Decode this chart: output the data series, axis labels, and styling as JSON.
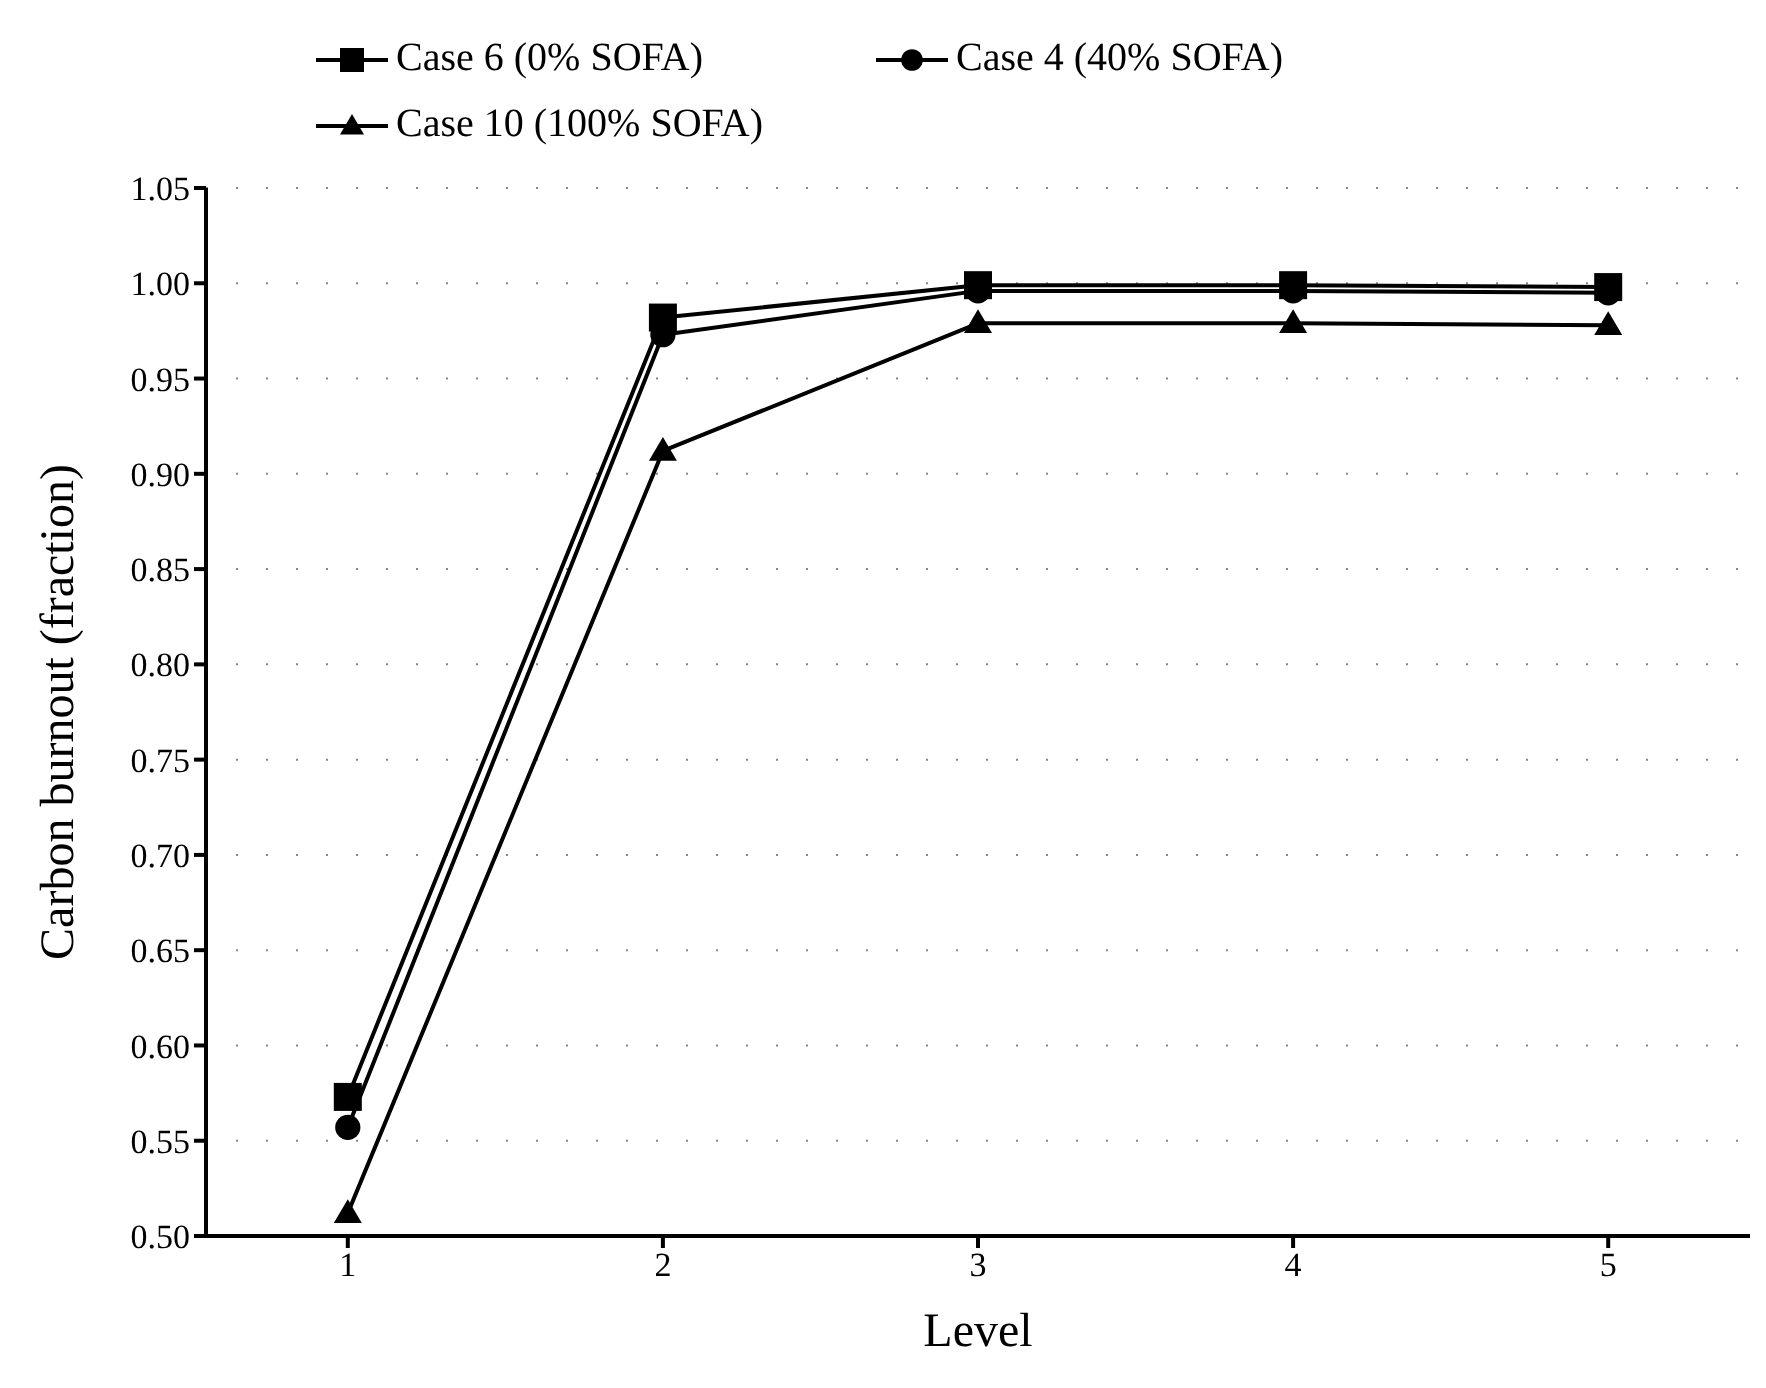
{
  "chart_data": {
    "type": "line",
    "xlabel": "Level",
    "ylabel": "Carbon burnout (fraction)",
    "x": [
      1,
      2,
      3,
      4,
      5
    ],
    "xlim": [
      0.55,
      5.45
    ],
    "xticks": [
      1,
      2,
      3,
      4,
      5
    ],
    "ylim": [
      0.5,
      1.05
    ],
    "yticks": [
      {
        "value": 0.5,
        "label": "0.50"
      },
      {
        "value": 0.55,
        "label": "0.55"
      },
      {
        "value": 0.6,
        "label": "0.60"
      },
      {
        "value": 0.65,
        "label": "0.65"
      },
      {
        "value": 0.7,
        "label": "0.70"
      },
      {
        "value": 0.75,
        "label": "0.75"
      },
      {
        "value": 0.8,
        "label": "0.80"
      },
      {
        "value": 0.85,
        "label": "0.85"
      },
      {
        "value": 0.9,
        "label": "0.90"
      },
      {
        "value": 0.95,
        "label": "0.95"
      },
      {
        "value": 1.0,
        "label": "1.00"
      },
      {
        "value": 1.05,
        "label": "1.05"
      }
    ],
    "grid": "y",
    "legend": "top",
    "series": [
      {
        "name": "Case 6 (0% SOFA)",
        "color": "#000000",
        "marker": "square",
        "values": [
          0.573,
          0.982,
          0.999,
          0.999,
          0.998
        ]
      },
      {
        "name": "Case 4 (40% SOFA)",
        "color": "#000000",
        "marker": "circle",
        "values": [
          0.557,
          0.973,
          0.996,
          0.996,
          0.995
        ]
      },
      {
        "name": "Case 10 (100% SOFA)",
        "color": "#000000",
        "marker": "triangle",
        "values": [
          0.512,
          0.912,
          0.979,
          0.979,
          0.978
        ]
      }
    ]
  }
}
